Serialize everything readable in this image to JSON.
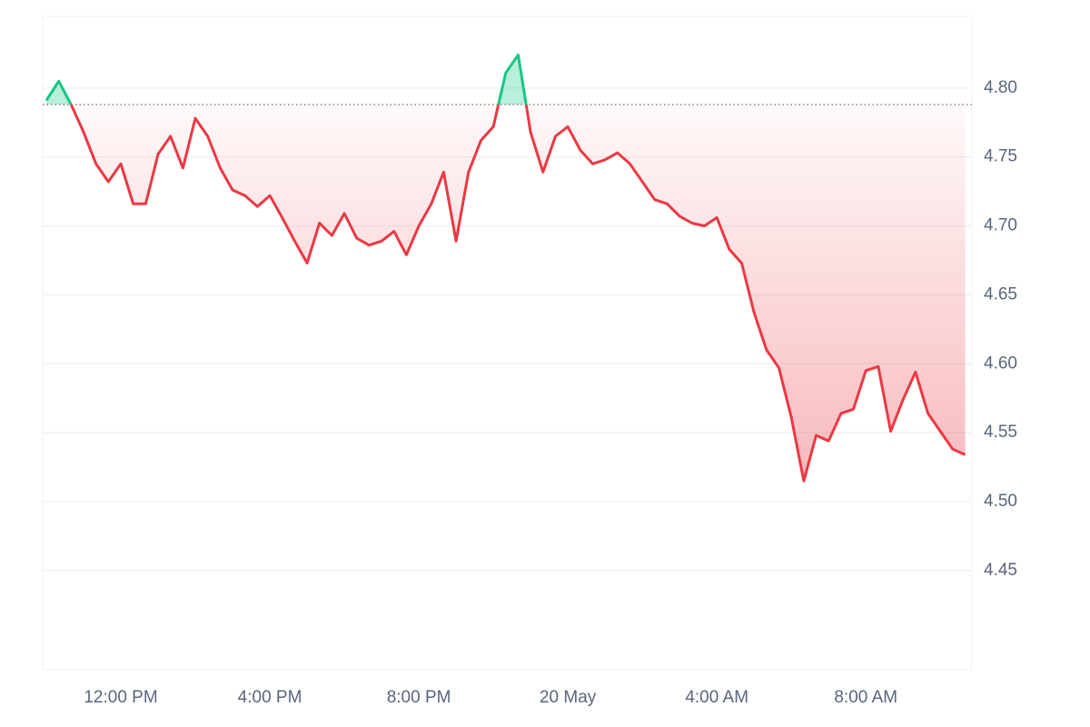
{
  "chart_data": {
    "type": "line",
    "categories": [
      null,
      null,
      null,
      null,
      null,
      null,
      "12:00 PM",
      null,
      null,
      null,
      null,
      null,
      null,
      null,
      null,
      null,
      null,
      null,
      "4:00 PM",
      null,
      null,
      null,
      null,
      null,
      null,
      null,
      null,
      null,
      null,
      null,
      "8:00 PM",
      null,
      null,
      null,
      null,
      null,
      null,
      null,
      null,
      null,
      null,
      null,
      "20 May",
      null,
      null,
      null,
      null,
      null,
      null,
      null,
      null,
      null,
      null,
      null,
      "4:00 AM",
      null,
      null,
      null,
      null,
      null,
      null,
      null,
      null,
      null,
      null,
      null,
      "8:00 AM",
      null,
      null,
      null,
      null,
      null,
      null,
      null,
      null
    ],
    "values": [
      4.791,
      4.805,
      4.788,
      4.768,
      4.745,
      4.732,
      4.745,
      4.716,
      4.716,
      4.752,
      4.765,
      4.742,
      4.778,
      4.765,
      4.742,
      4.726,
      4.722,
      4.714,
      4.722,
      4.706,
      4.689,
      4.673,
      4.702,
      4.693,
      4.709,
      4.691,
      4.686,
      4.689,
      4.696,
      4.679,
      4.7,
      4.716,
      4.739,
      4.689,
      4.739,
      4.762,
      4.772,
      4.811,
      4.824,
      4.768,
      4.739,
      4.765,
      4.772,
      4.755,
      4.745,
      4.748,
      4.753,
      4.745,
      4.732,
      4.719,
      4.716,
      4.707,
      4.702,
      4.7,
      4.706,
      4.683,
      4.673,
      4.637,
      4.61,
      4.597,
      4.561,
      4.515,
      4.548,
      4.544,
      4.564,
      4.567,
      4.595,
      4.598,
      4.551,
      4.574,
      4.594,
      4.564,
      4.551,
      4.538,
      4.534
    ],
    "baseline": 4.788,
    "up_color": "#16c784",
    "down_color": "#ea3943",
    "ylim": [
      4.378,
      4.852
    ],
    "yticks": [
      4.45,
      {
        "value": 4.5,
        "label": "4.50"
      },
      4.55,
      {
        "value": 4.6,
        "label": "4.60"
      },
      4.65,
      {
        "value": 4.7,
        "label": "4.70"
      },
      4.75,
      {
        "value": 4.8,
        "label": "4.80"
      }
    ],
    "grid": true
  }
}
